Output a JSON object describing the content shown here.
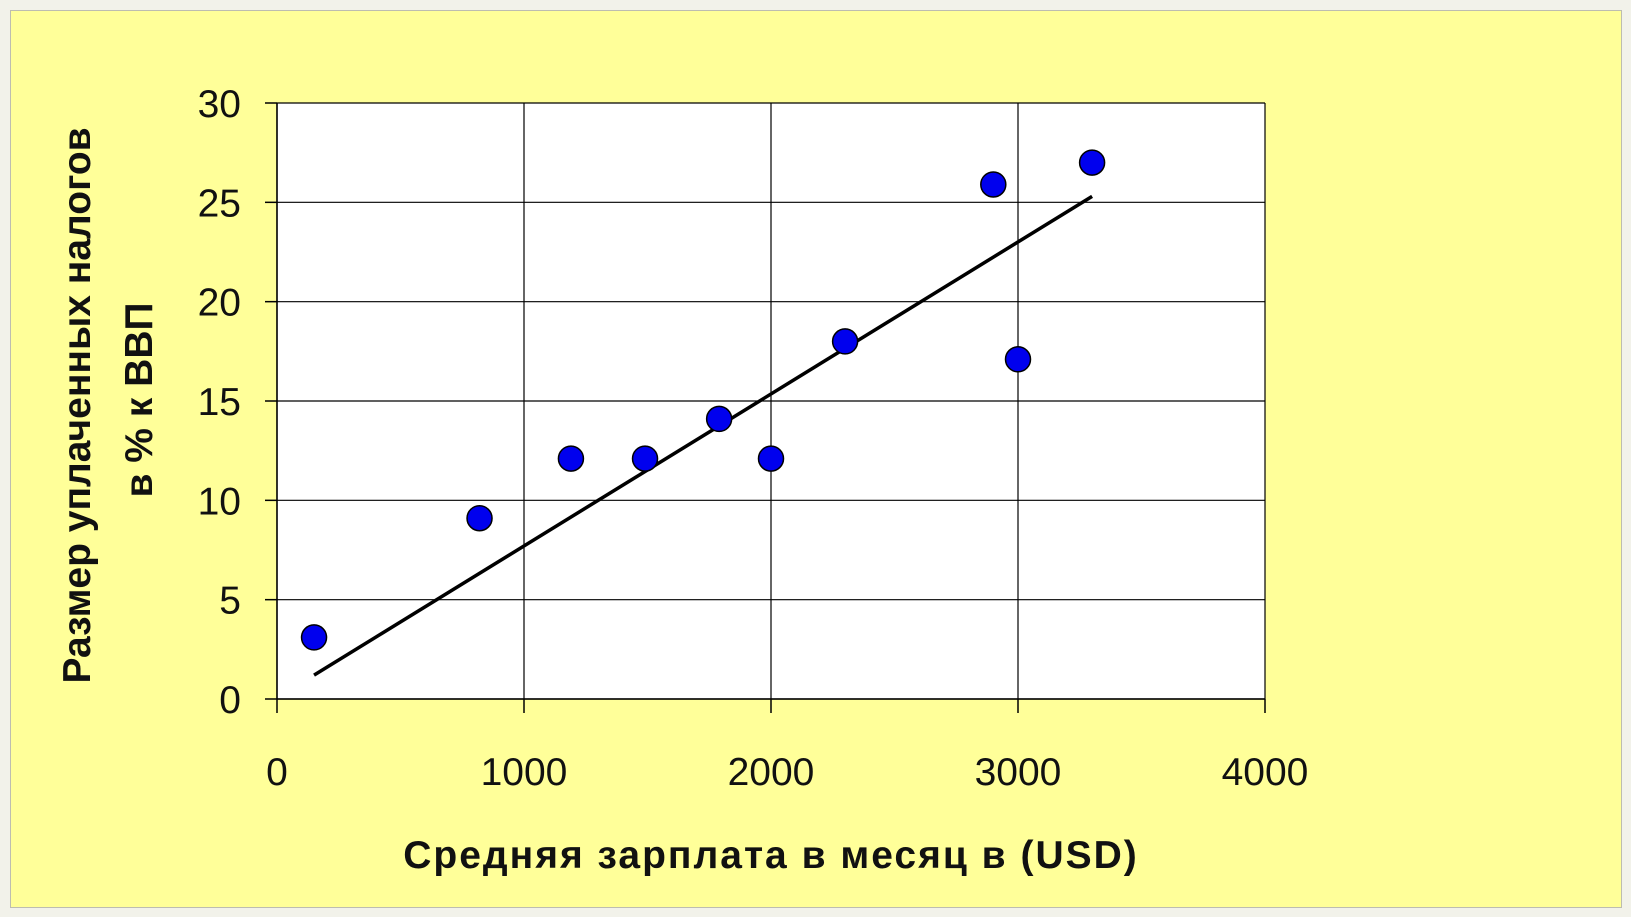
{
  "chart_data": {
    "type": "scatter",
    "xlabel": "Средняя зарплата в месяц в (USD)",
    "ylabel_lines": [
      "Размер уплаченных налогов",
      "в % к ВВП"
    ],
    "xlim": [
      0,
      4000
    ],
    "ylim": [
      0,
      30
    ],
    "x_ticks": [
      0,
      1000,
      2000,
      3000,
      4000
    ],
    "y_ticks": [
      0,
      5,
      10,
      15,
      20,
      25,
      30
    ],
    "grid": true,
    "points": [
      {
        "x": 150,
        "y": 3.1
      },
      {
        "x": 820,
        "y": 9.1
      },
      {
        "x": 1190,
        "y": 12.1
      },
      {
        "x": 1490,
        "y": 12.1
      },
      {
        "x": 1790,
        "y": 14.1
      },
      {
        "x": 2000,
        "y": 12.1
      },
      {
        "x": 2300,
        "y": 18.0
      },
      {
        "x": 2900,
        "y": 25.9
      },
      {
        "x": 3000,
        "y": 17.1
      },
      {
        "x": 3300,
        "y": 27.0
      }
    ],
    "trendline": {
      "x1": 150,
      "y1": 1.2,
      "x2": 3300,
      "y2": 25.3
    },
    "colors": {
      "point_fill": "#0000ee",
      "point_stroke": "#000000",
      "trendline": "#000000",
      "grid": "#000000",
      "plot_background": "#ffffff",
      "frame_background": "#ffff99"
    }
  }
}
